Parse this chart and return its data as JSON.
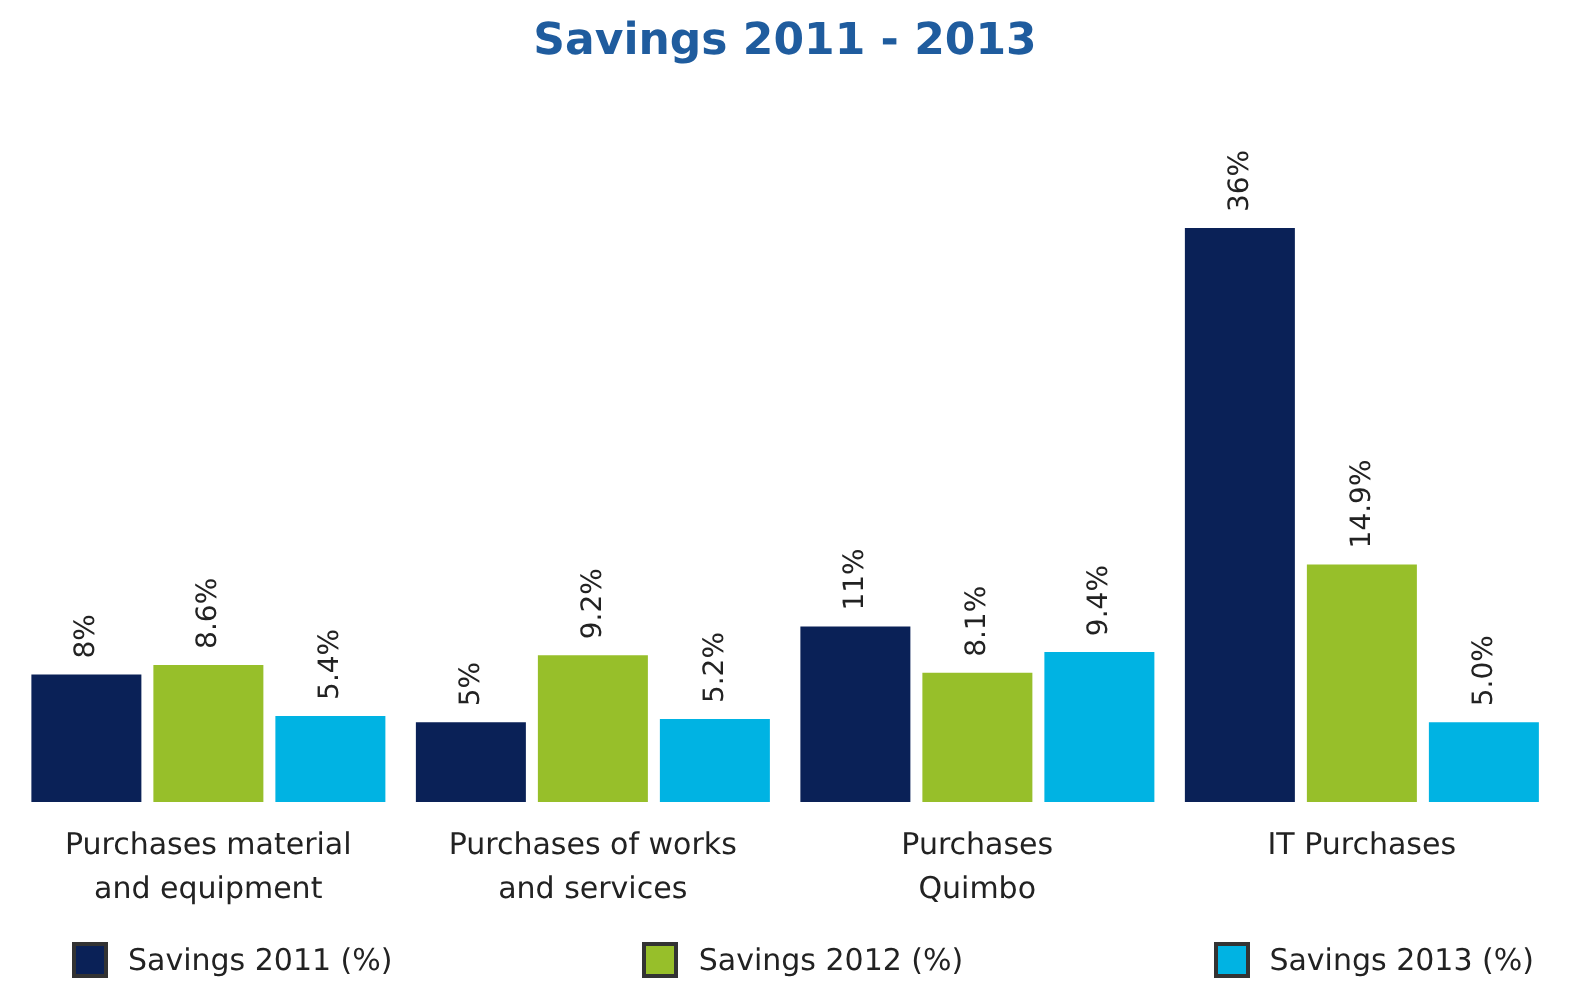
{
  "chart_data": {
    "type": "bar",
    "title": "Savings 2011 - 2013",
    "categories": [
      "Purchases material and equipment",
      "Purchases of works and services",
      "Purchases Quimbo",
      "IT Purchases"
    ],
    "series": [
      {
        "name": "Savings 2011 (%)",
        "color": "#0a2157",
        "values": [
          8,
          5,
          11,
          36
        ],
        "value_labels": [
          "8%",
          "5%",
          "11%",
          "36%"
        ]
      },
      {
        "name": "Savings 2012 (%)",
        "color": "#97bf2a",
        "values": [
          8.6,
          9.2,
          8.1,
          14.9
        ],
        "value_labels": [
          "8.6%",
          "9.2%",
          "8.1%",
          "14.9%"
        ]
      },
      {
        "name": "Savings 2013 (%)",
        "color": "#00b3e3",
        "values": [
          5.4,
          5.2,
          9.4,
          5.0
        ],
        "value_labels": [
          "5.4%",
          "5.2%",
          "9.4%",
          "5.0%"
        ]
      }
    ],
    "legend": "bottom",
    "grid": false
  }
}
